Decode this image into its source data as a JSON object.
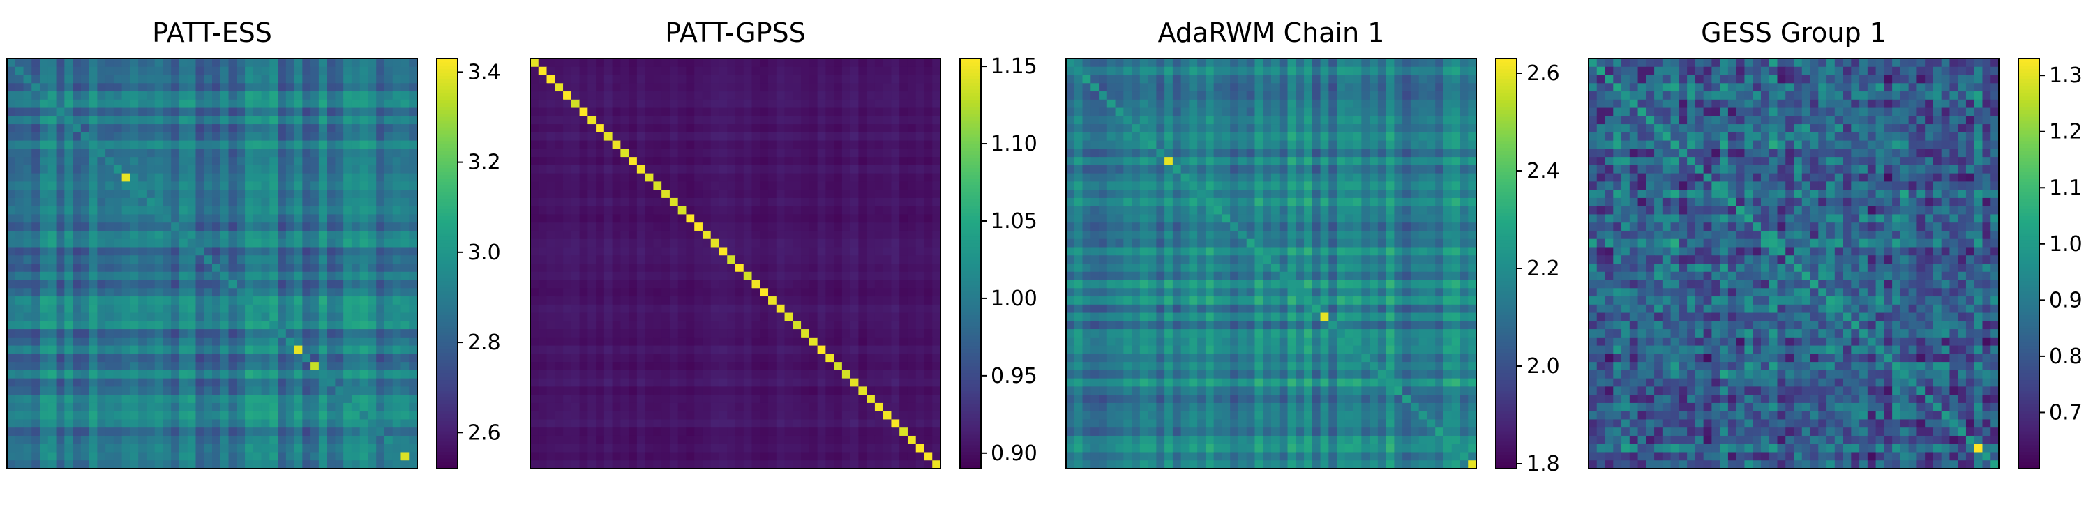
{
  "chart_data": [
    {
      "type": "heatmap",
      "title": "PATT-ESS",
      "size": 50,
      "colorbar": {
        "vmin": 2.52,
        "vmax": 3.43,
        "ticks": [
          2.6,
          2.8,
          3.0,
          3.2,
          3.4
        ],
        "tick_labels": [
          "2.6",
          "2.8",
          "3.0",
          "3.2",
          "3.4"
        ]
      },
      "diagonal_mean": 2.95,
      "offdiag_mean": 2.9,
      "offdiag_spread": 0.18,
      "structure": "banded",
      "seed": 11,
      "diag_peaks": [
        {
          "index": 14,
          "value": 3.4
        },
        {
          "index": 35,
          "value": 3.4
        },
        {
          "index": 37,
          "value": 3.35
        },
        {
          "index": 48,
          "value": 3.38
        }
      ]
    },
    {
      "type": "heatmap",
      "title": "PATT-GPSS",
      "size": 50,
      "colorbar": {
        "vmin": 0.89,
        "vmax": 1.155,
        "ticks": [
          0.9,
          0.95,
          1.0,
          1.05,
          1.1,
          1.15
        ],
        "tick_labels": [
          "0.90",
          "0.95",
          "1.00",
          "1.05",
          "1.10",
          "1.15"
        ]
      },
      "diagonal_mean": 1.15,
      "offdiag_mean": 0.905,
      "offdiag_spread": 0.01,
      "structure": "banded",
      "seed": 23,
      "diag_peaks": []
    },
    {
      "type": "heatmap",
      "title": "AdaRWM Chain 1",
      "size": 50,
      "colorbar": {
        "vmin": 1.79,
        "vmax": 2.63,
        "ticks": [
          1.8,
          2.0,
          2.2,
          2.4,
          2.6
        ],
        "tick_labels": [
          "1.8",
          "2.0",
          "2.2",
          "2.4",
          "2.6"
        ]
      },
      "diagonal_mean": 2.25,
      "offdiag_mean": 2.17,
      "offdiag_spread": 0.16,
      "structure": "banded",
      "seed": 37,
      "diag_peaks": [
        {
          "index": 12,
          "value": 2.6
        },
        {
          "index": 31,
          "value": 2.6
        },
        {
          "index": 49,
          "value": 2.6
        }
      ]
    },
    {
      "type": "heatmap",
      "title": "GESS Group 1",
      "size": 50,
      "colorbar": {
        "vmin": 0.6,
        "vmax": 1.33,
        "ticks": [
          0.7,
          0.8,
          0.9,
          1.0,
          1.1,
          1.2,
          1.3
        ],
        "tick_labels": [
          "0.7",
          "0.8",
          "0.9",
          "1.0",
          "1.1",
          "1.2",
          "1.3"
        ]
      },
      "diagonal_mean": 1.0,
      "offdiag_mean": 0.86,
      "offdiag_spread": 0.14,
      "structure": "noisy",
      "seed": 53,
      "diag_peaks": [
        {
          "index": 47,
          "value": 1.33
        }
      ]
    }
  ]
}
